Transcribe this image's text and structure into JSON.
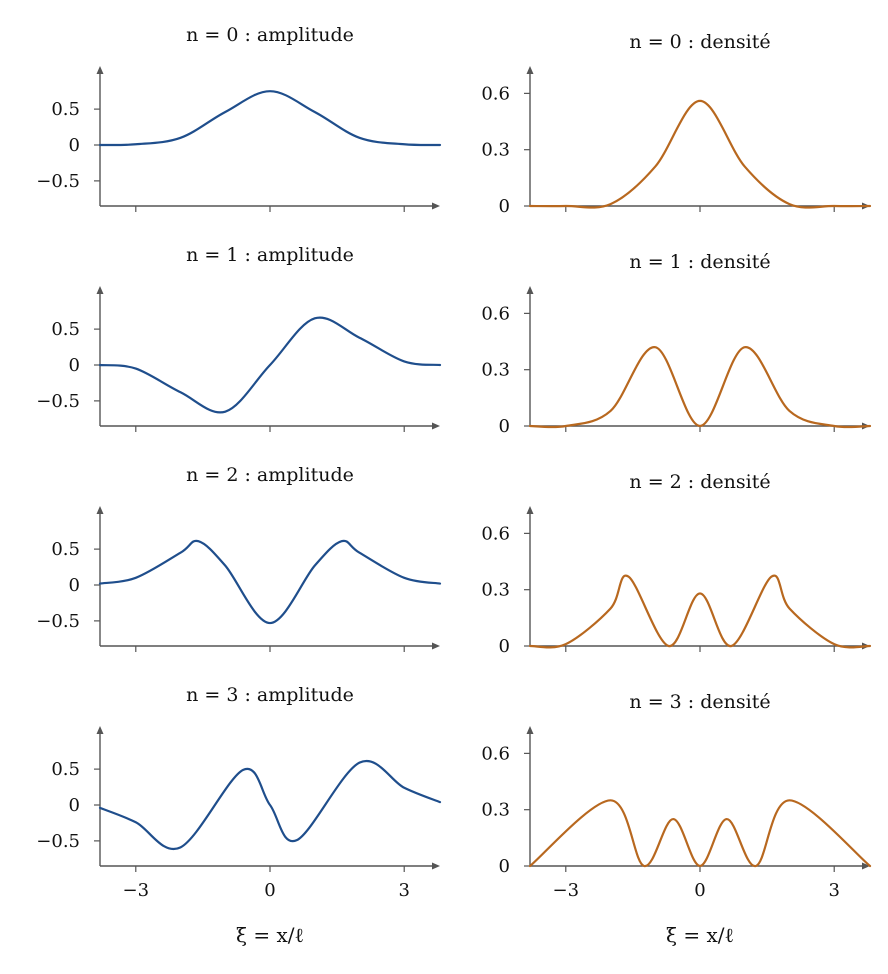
{
  "colors": {
    "amplitude": "#1f4e8c",
    "density": "#b8681f",
    "axis": "#555555"
  },
  "xlabel": "ξ = x/ℓ",
  "chart_data": [
    {
      "type": "line",
      "panel": "amplitude",
      "n": 0,
      "title": "n = 0 : amplitude",
      "xlim": [
        -3.8,
        3.8
      ],
      "ylim": [
        -0.85,
        0.85
      ],
      "xticks": [
        -3,
        0,
        3
      ],
      "xtick_labels": [
        "",
        "",
        ""
      ],
      "yticks": [
        -0.5,
        0,
        0.5
      ],
      "ytick_labels": [
        "−0.5",
        "0",
        "0.5"
      ],
      "x": [
        -3.8,
        -3,
        -2,
        -1,
        0,
        1,
        2,
        3,
        3.8
      ],
      "y": [
        0.0,
        0.01,
        0.1,
        0.46,
        0.75,
        0.46,
        0.1,
        0.01,
        0.0
      ]
    },
    {
      "type": "line",
      "panel": "density",
      "n": 0,
      "title": "n = 0 : densité",
      "xlim": [
        -3.8,
        3.8
      ],
      "ylim": [
        0,
        0.65
      ],
      "xticks": [
        -3,
        0,
        3
      ],
      "xtick_labels": [
        "",
        "",
        ""
      ],
      "yticks": [
        0,
        0.3,
        0.6
      ],
      "ytick_labels": [
        "0",
        "0.3",
        "0.6"
      ],
      "x": [
        -3.8,
        -3,
        -2,
        -1,
        0,
        1,
        2,
        3,
        3.8
      ],
      "y": [
        0.0,
        0.0,
        0.01,
        0.21,
        0.56,
        0.21,
        0.01,
        0.0,
        0.0
      ]
    },
    {
      "type": "line",
      "panel": "amplitude",
      "n": 1,
      "title": "n = 1 : amplitude",
      "xlim": [
        -3.8,
        3.8
      ],
      "ylim": [
        -0.85,
        0.85
      ],
      "xticks": [
        -3,
        0,
        3
      ],
      "xtick_labels": [
        "",
        "",
        ""
      ],
      "yticks": [
        -0.5,
        0,
        0.5
      ],
      "ytick_labels": [
        "−0.5",
        "0",
        "0.5"
      ],
      "x": [
        -3.8,
        -3,
        -2,
        -1,
        0,
        1,
        2,
        3,
        3.8
      ],
      "y": [
        0.0,
        -0.05,
        -0.38,
        -0.65,
        0.0,
        0.65,
        0.38,
        0.05,
        0.0
      ]
    },
    {
      "type": "line",
      "panel": "density",
      "n": 1,
      "title": "n = 1 : densité",
      "xlim": [
        -3.8,
        3.8
      ],
      "ylim": [
        0,
        0.65
      ],
      "xticks": [
        -3,
        0,
        3
      ],
      "xtick_labels": [
        "",
        "",
        ""
      ],
      "yticks": [
        0,
        0.3,
        0.6
      ],
      "ytick_labels": [
        "0",
        "0.3",
        "0.6"
      ],
      "x": [
        -3.8,
        -3,
        -2,
        -1,
        0,
        1,
        2,
        3,
        3.8
      ],
      "y": [
        0.0,
        0.0,
        0.08,
        0.42,
        0.0,
        0.42,
        0.08,
        0.0,
        0.0
      ]
    },
    {
      "type": "line",
      "panel": "amplitude",
      "n": 2,
      "title": "n = 2 : amplitude",
      "xlim": [
        -3.8,
        3.8
      ],
      "ylim": [
        -0.85,
        0.85
      ],
      "xticks": [
        -3,
        0,
        3
      ],
      "xtick_labels": [
        "",
        "",
        ""
      ],
      "yticks": [
        -0.5,
        0,
        0.5
      ],
      "ytick_labels": [
        "−0.5",
        "0",
        "0.5"
      ],
      "x": [
        -3.8,
        -3,
        -2,
        -1.6,
        -1,
        0,
        1,
        1.6,
        2,
        3,
        3.8
      ],
      "y": [
        0.02,
        0.1,
        0.45,
        0.61,
        0.27,
        -0.53,
        0.27,
        0.61,
        0.45,
        0.1,
        0.02
      ]
    },
    {
      "type": "line",
      "panel": "density",
      "n": 2,
      "title": "n = 2 : densité",
      "xlim": [
        -3.8,
        3.8
      ],
      "ylim": [
        0,
        0.65
      ],
      "xticks": [
        -3,
        0,
        3
      ],
      "xtick_labels": [
        "",
        "",
        ""
      ],
      "yticks": [
        0,
        0.3,
        0.6
      ],
      "ytick_labels": [
        "0",
        "0.3",
        "0.6"
      ],
      "x": [
        -3.8,
        -3,
        -2,
        -1.6,
        -0.7,
        0,
        0.7,
        1.6,
        2,
        3,
        3.8
      ],
      "y": [
        0.0,
        0.01,
        0.2,
        0.37,
        0.0,
        0.28,
        0.0,
        0.37,
        0.2,
        0.01,
        0.0
      ]
    },
    {
      "type": "line",
      "panel": "amplitude",
      "n": 3,
      "title": "n = 3 : amplitude",
      "xlim": [
        -3.8,
        3.8
      ],
      "ylim": [
        -0.85,
        0.85
      ],
      "xticks": [
        -3,
        0,
        3
      ],
      "xtick_labels": [
        "−3",
        "0",
        "3"
      ],
      "yticks": [
        -0.5,
        0,
        0.5
      ],
      "ytick_labels": [
        "−0.5",
        "0",
        "0.5"
      ],
      "x": [
        -3.8,
        -3,
        -2,
        -0.6,
        0,
        0.6,
        2,
        3,
        3.8
      ],
      "y": [
        -0.04,
        -0.24,
        -0.59,
        0.49,
        0.0,
        -0.49,
        0.59,
        0.24,
        0.04
      ]
    },
    {
      "type": "line",
      "panel": "density",
      "n": 3,
      "title": "n = 3 : densité",
      "xlim": [
        -3.8,
        3.8
      ],
      "ylim": [
        0,
        0.65
      ],
      "xticks": [
        -3,
        0,
        3
      ],
      "xtick_labels": [
        "−3",
        "0",
        "3"
      ],
      "yticks": [
        0,
        0.3,
        0.6
      ],
      "ytick_labels": [
        "0",
        "0.3",
        "0.6"
      ],
      "x": [
        -3.8,
        -2,
        -1.25,
        -0.6,
        0,
        0.6,
        1.25,
        2,
        3.8
      ],
      "y": [
        0.0,
        0.35,
        0.0,
        0.25,
        0.0,
        0.25,
        0.0,
        0.35,
        0.0
      ]
    }
  ]
}
